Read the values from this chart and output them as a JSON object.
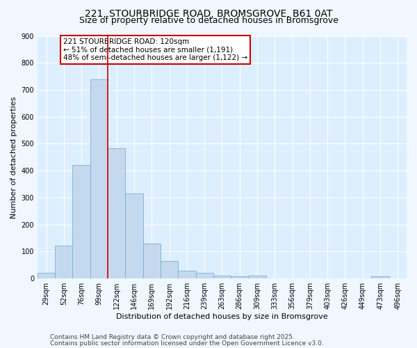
{
  "title1": "221, STOURBRIDGE ROAD, BROMSGROVE, B61 0AT",
  "title2": "Size of property relative to detached houses in Bromsgrove",
  "xlabel": "Distribution of detached houses by size in Bromsgrove",
  "ylabel": "Number of detached properties",
  "categories": [
    "29sqm",
    "52sqm",
    "76sqm",
    "99sqm",
    "122sqm",
    "146sqm",
    "169sqm",
    "192sqm",
    "216sqm",
    "239sqm",
    "263sqm",
    "286sqm",
    "309sqm",
    "333sqm",
    "356sqm",
    "379sqm",
    "403sqm",
    "426sqm",
    "449sqm",
    "473sqm",
    "496sqm"
  ],
  "values": [
    20,
    122,
    422,
    738,
    484,
    315,
    130,
    65,
    28,
    22,
    10,
    8,
    10,
    0,
    0,
    0,
    0,
    0,
    0,
    8,
    0
  ],
  "bar_color": "#c5d9ee",
  "bar_edge_color": "#7aafd4",
  "vline_color": "#cc0000",
  "annotation_text": "221 STOURBRIDGE ROAD: 120sqm\n← 51% of detached houses are smaller (1,191)\n48% of semi-detached houses are larger (1,122) →",
  "annotation_box_color": "#ffffff",
  "annotation_box_edge": "#cc0000",
  "ylim": [
    0,
    900
  ],
  "yticks": [
    0,
    100,
    200,
    300,
    400,
    500,
    600,
    700,
    800,
    900
  ],
  "footnote1": "Contains HM Land Registry data © Crown copyright and database right 2025.",
  "footnote2": "Contains public sector information licensed under the Open Government Licence v3.0.",
  "bg_color": "#f0f7ff",
  "plot_bg_color": "#ddeeff",
  "grid_color": "#ffffff",
  "title_fontsize": 10,
  "subtitle_fontsize": 9,
  "axis_label_fontsize": 8,
  "tick_fontsize": 7,
  "footnote_fontsize": 6.5,
  "annotation_fontsize": 7.5,
  "vline_pos": 3.5
}
